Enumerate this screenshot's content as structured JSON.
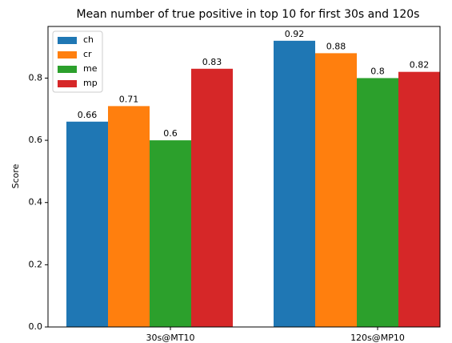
{
  "chart_data": {
    "type": "bar",
    "title": "Mean number of true positive in top 10 for first 30s and 120s",
    "y_label": "Score",
    "categories": [
      "30s@MT10",
      "120s@MP10"
    ],
    "series": [
      {
        "name": "ch",
        "color": "#1f77b4",
        "values": [
          0.66,
          0.92
        ]
      },
      {
        "name": "cr",
        "color": "#ff7f0e",
        "values": [
          0.71,
          0.88
        ]
      },
      {
        "name": "me",
        "color": "#2ca02c",
        "values": [
          0.6,
          0.8
        ]
      },
      {
        "name": "mp",
        "color": "#d62728",
        "values": [
          0.83,
          0.82
        ]
      }
    ],
    "ylim": [
      0,
      0.966
    ],
    "yticks": [
      {
        "value": 0,
        "label": "0.0"
      },
      0.2,
      0.4,
      0.6,
      0.8
    ],
    "legend": "upper left"
  }
}
